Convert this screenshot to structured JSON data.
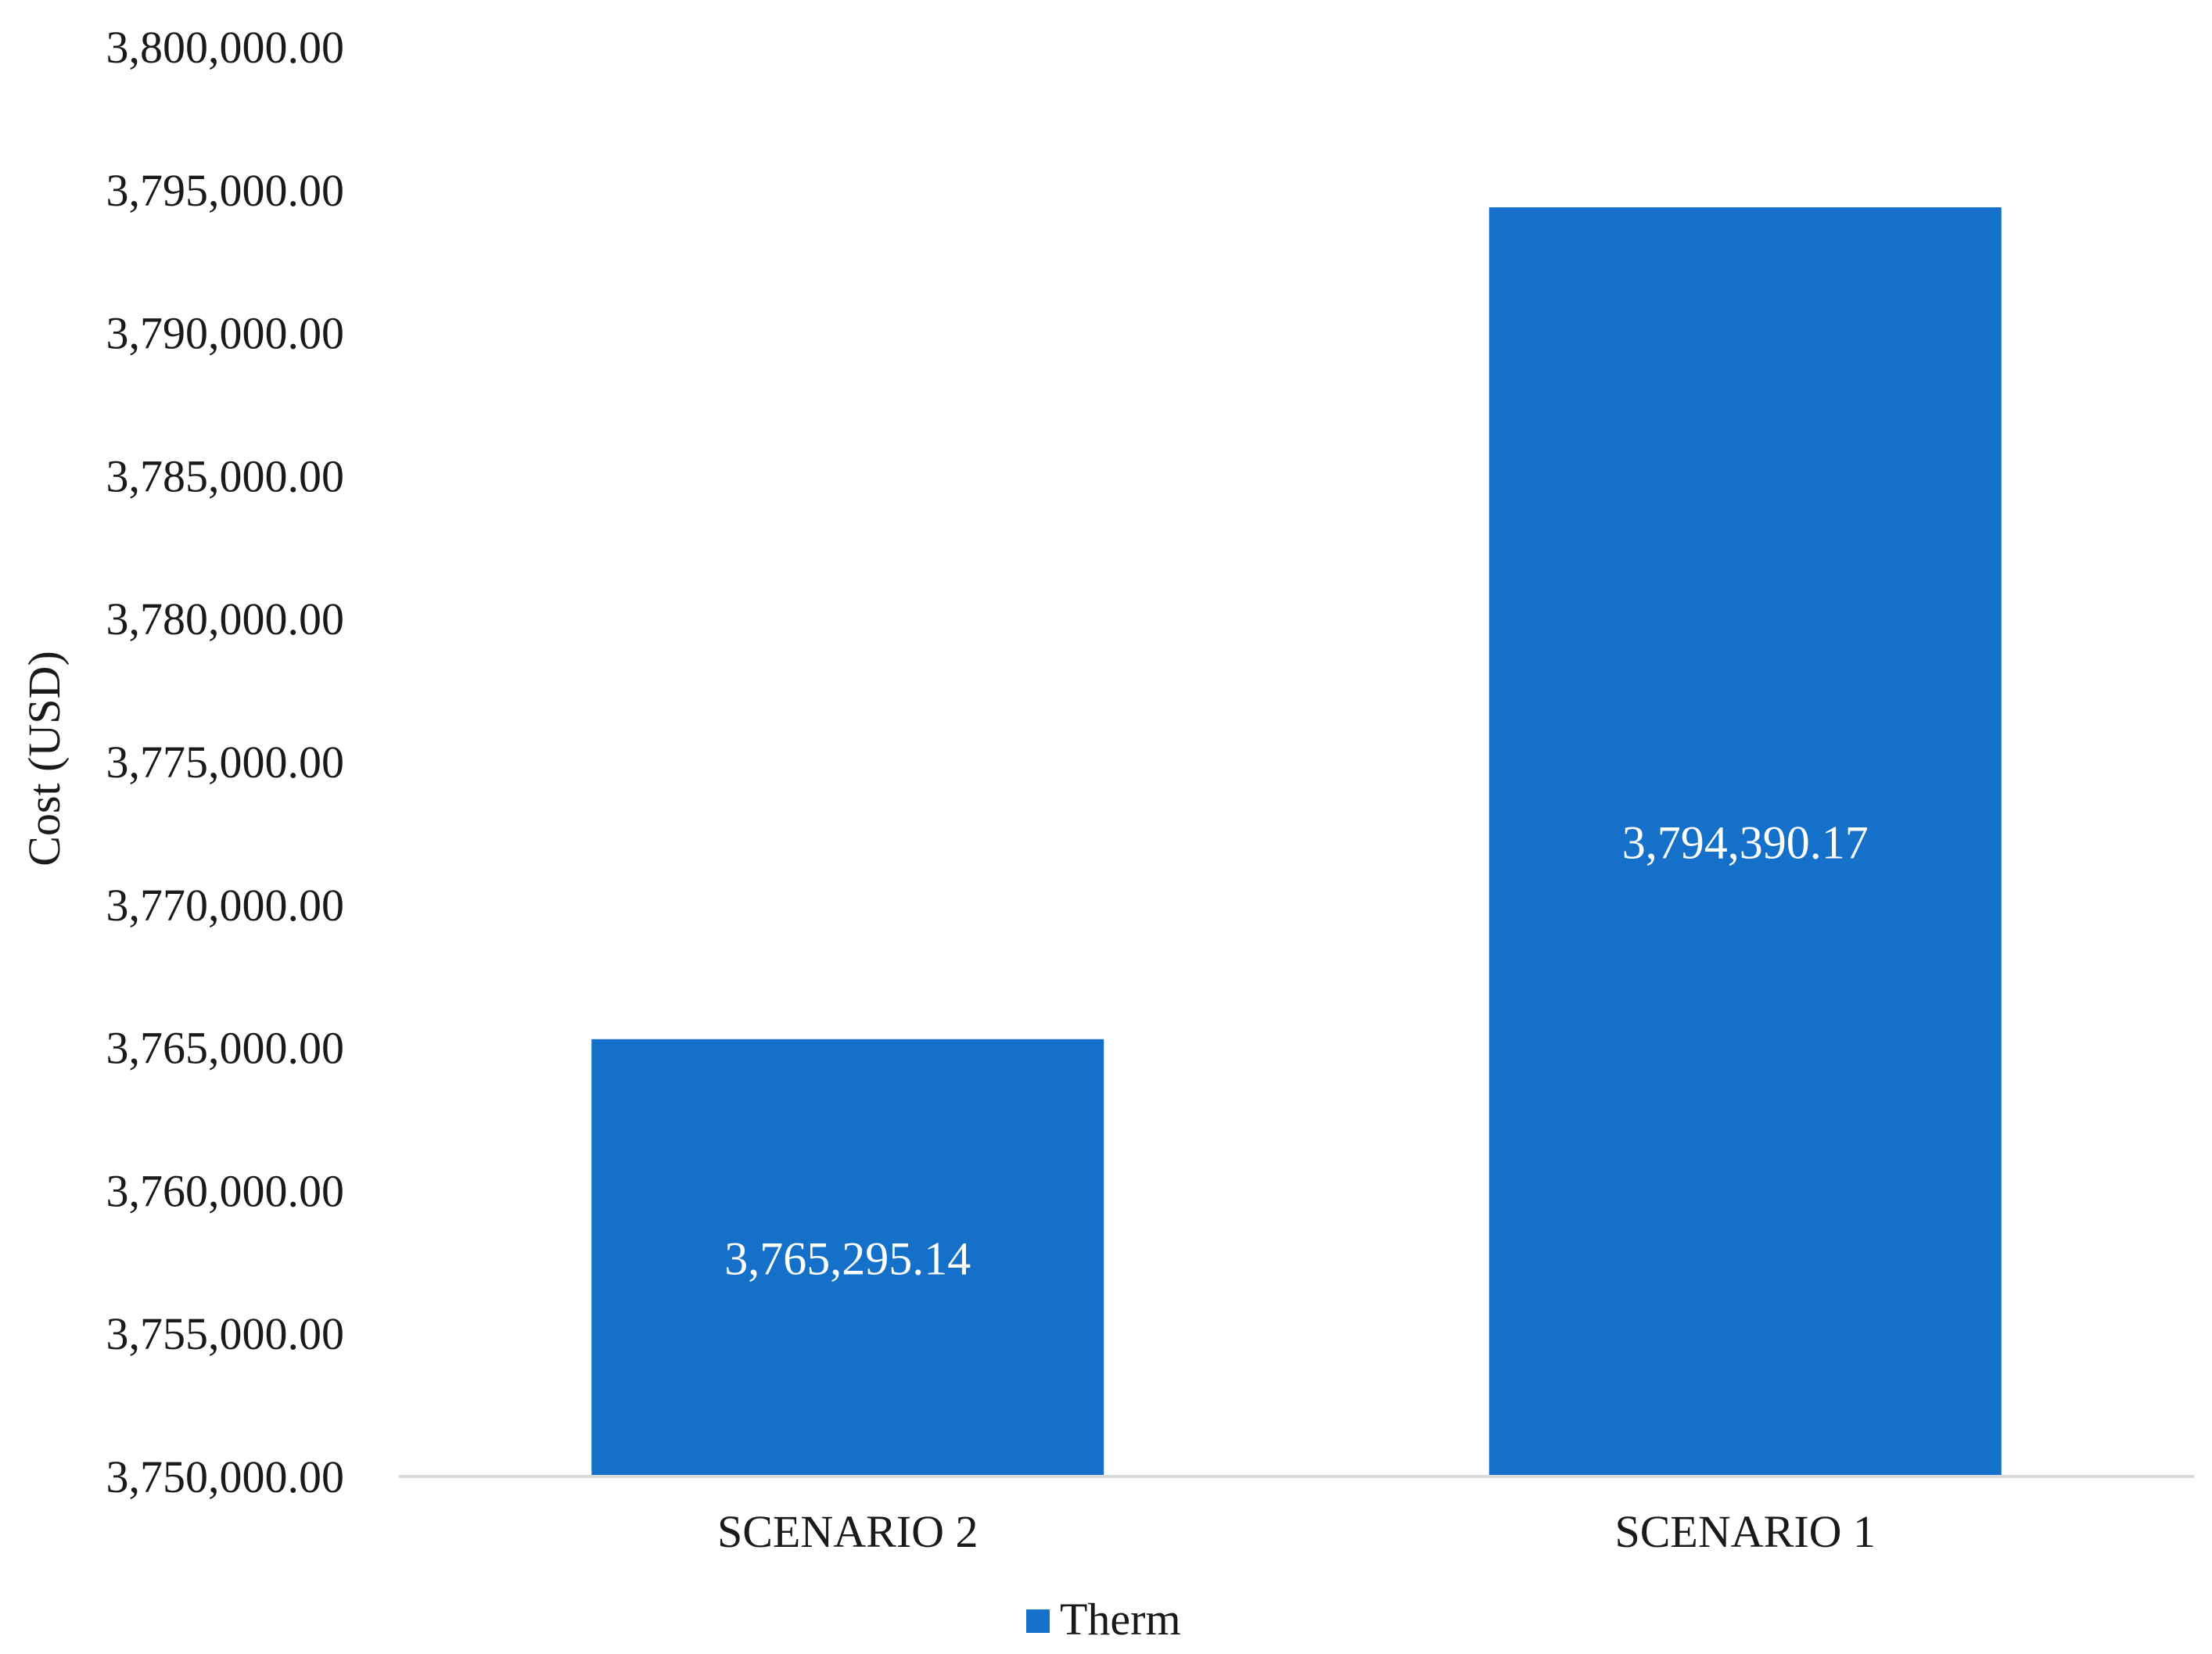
{
  "chart_data": {
    "type": "bar",
    "title": "",
    "xlabel": "",
    "ylabel": "Cost  (USD)",
    "categories": [
      "SCENARIO 2",
      "SCENARIO 1"
    ],
    "series": [
      {
        "name": "Therm",
        "values": [
          3765295.14,
          3794390.17
        ],
        "data_labels": [
          "3,765,295.14",
          "3,794,390.17"
        ],
        "color": "#1570c9"
      }
    ],
    "ylim": [
      3750000,
      3800000
    ],
    "y_ticks": [
      3750000,
      3755000,
      3760000,
      3765000,
      3770000,
      3775000,
      3780000,
      3785000,
      3790000,
      3795000,
      3800000
    ],
    "y_tick_labels": [
      "3,750,000.00",
      "3,755,000.00",
      "3,760,000.00",
      "3,765,000.00",
      "3,770,000.00",
      "3,775,000.00",
      "3,780,000.00",
      "3,785,000.00",
      "3,790,000.00",
      "3,795,000.00",
      "3,800,000.00"
    ],
    "grid": false,
    "legend": {
      "position": "bottom",
      "entries": [
        "Therm"
      ]
    }
  },
  "colors": {
    "bar": "#1570c9",
    "axis_line": "#d9d9d9",
    "text": "#1a1a1a",
    "data_label": "#ffffff"
  }
}
